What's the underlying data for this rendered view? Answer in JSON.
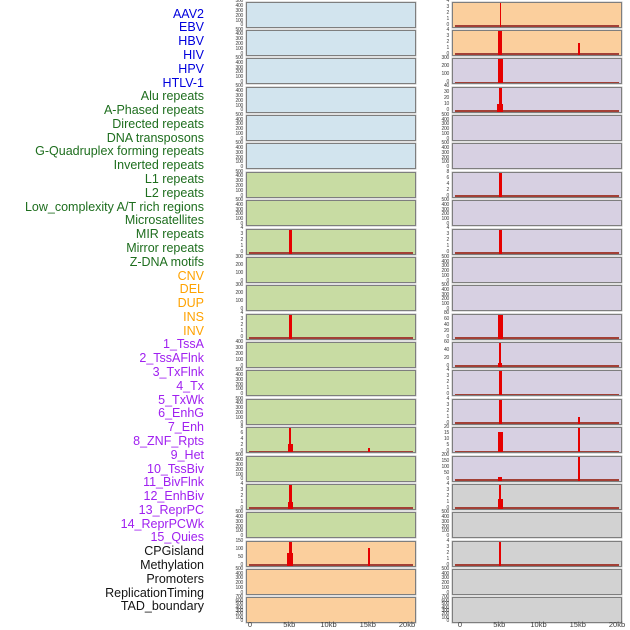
{
  "style": {
    "background": "#ffffff",
    "spike_color": "#e60000",
    "baseline_color": "#a24036",
    "panel_border": "#7e7e7e",
    "axis_text_color": "#3c3c3c",
    "label_colors": {
      "virus": "#0000dd",
      "repeat": "#1e6e1e",
      "variant": "#ffa200",
      "chromatin": "#a020f0",
      "genomic": "#141414"
    },
    "bg_colors": {
      "virus": "#d2e4ee",
      "repeat": "#c8dca3",
      "variant": "#fbcf9d",
      "chromatin": "#d7d0e2",
      "genomic": "#d2d2d2"
    }
  },
  "chart_data": {
    "type": "histogram-small-multiples",
    "description": "Feature density tracks over a 0-20kb window; red spikes mark feature enrichment (mostly at 5kb, some at 15kb).",
    "x_ticks": [
      "0",
      "5kb",
      "10kb",
      "15kb",
      "20kb"
    ],
    "x_range_kb": [
      0,
      20
    ],
    "grid": {
      "rows": 22,
      "cols": 2,
      "order": "column-major"
    },
    "legend_position": "none",
    "panels": [
      {
        "label": "AAV2",
        "group": "virus",
        "y_ticks": [
          "500",
          "400",
          "300",
          "200",
          "100",
          "0"
        ],
        "spikes": [],
        "baseline": false
      },
      {
        "label": "EBV",
        "group": "virus",
        "y_ticks": [
          "500",
          "400",
          "300",
          "200",
          "100",
          "0"
        ],
        "spikes": [],
        "baseline": false
      },
      {
        "label": "HBV",
        "group": "virus",
        "y_ticks": [
          "500",
          "400",
          "300",
          "200",
          "100",
          "0"
        ],
        "spikes": [],
        "baseline": false
      },
      {
        "label": "HIV",
        "group": "virus",
        "y_ticks": [
          "500",
          "400",
          "300",
          "200",
          "100",
          "0"
        ],
        "spikes": [],
        "baseline": false
      },
      {
        "label": "HPV",
        "group": "virus",
        "y_ticks": [
          "500",
          "400",
          "300",
          "200",
          "100",
          "0"
        ],
        "spikes": [],
        "baseline": false
      },
      {
        "label": "HTLV-1",
        "group": "virus",
        "y_ticks": [
          "500",
          "400",
          "300",
          "200",
          "100",
          "0"
        ],
        "spikes": [],
        "baseline": false
      },
      {
        "label": "Alu repeats",
        "group": "repeat",
        "y_ticks": [
          "500",
          "400",
          "300",
          "200",
          "100",
          "0"
        ],
        "spikes": [],
        "baseline": false
      },
      {
        "label": "A-Phased repeats",
        "group": "repeat",
        "y_ticks": [
          "500",
          "400",
          "300",
          "200",
          "100",
          "0"
        ],
        "spikes": [],
        "baseline": false
      },
      {
        "label": "Directed repeats",
        "group": "repeat",
        "y_ticks": [
          "4",
          "3",
          "2",
          "1",
          "0"
        ],
        "spikes": [
          {
            "x_kb": 5,
            "value": 4,
            "h": 1,
            "w": 2.5
          }
        ],
        "baseline": true
      },
      {
        "label": "DNA transposons",
        "group": "repeat",
        "y_ticks": [
          "300",
          "200",
          "100",
          "0"
        ],
        "spikes": [],
        "baseline": false
      },
      {
        "label": "G-Quadruplex forming repeats",
        "group": "repeat",
        "y_ticks": [
          "300",
          "200",
          "100",
          "0"
        ],
        "spikes": [],
        "baseline": false
      },
      {
        "label": "Inverted repeats",
        "group": "repeat",
        "y_ticks": [
          "4",
          "3",
          "2",
          "1",
          "0"
        ],
        "spikes": [
          {
            "x_kb": 5,
            "value": 4,
            "h": 1,
            "w": 2.5
          }
        ],
        "baseline": true
      },
      {
        "label": "L1 repeats",
        "group": "repeat",
        "y_ticks": [
          "400",
          "300",
          "200",
          "100",
          "0"
        ],
        "spikes": [],
        "baseline": false
      },
      {
        "label": "L2 repeats",
        "group": "repeat",
        "y_ticks": [
          "500",
          "400",
          "300",
          "200",
          "100",
          "0"
        ],
        "spikes": [],
        "baseline": false
      },
      {
        "label": "Low_complexity A/T rich regions",
        "group": "repeat",
        "y_ticks": [
          "500",
          "400",
          "300",
          "200",
          "100",
          "0"
        ],
        "spikes": [],
        "baseline": false
      },
      {
        "label": "Microsatellites",
        "group": "repeat",
        "y_ticks": [
          "8",
          "6",
          "4",
          "2",
          "0"
        ],
        "spikes": [
          {
            "x_kb": 5,
            "value": 8,
            "h": 1,
            "w": 2
          },
          {
            "x_kb": 5,
            "value": 2.8,
            "h": 0.35,
            "w": 5
          },
          {
            "x_kb": 15,
            "value": 1.5,
            "h": 0.18,
            "w": 2
          }
        ],
        "baseline": true
      },
      {
        "label": "MIR repeats",
        "group": "repeat",
        "y_ticks": [
          "500",
          "400",
          "300",
          "200",
          "100",
          "0"
        ],
        "spikes": [],
        "baseline": false
      },
      {
        "label": "Mirror repeats",
        "group": "repeat",
        "y_ticks": [
          "4",
          "3",
          "2",
          "1",
          "0"
        ],
        "spikes": [
          {
            "x_kb": 5,
            "value": 4,
            "h": 1,
            "w": 2.5
          },
          {
            "x_kb": 5,
            "value": 1.2,
            "h": 0.3,
            "w": 4.5
          }
        ],
        "baseline": true
      },
      {
        "label": "Z-DNA motifs",
        "group": "repeat",
        "y_ticks": [
          "500",
          "400",
          "300",
          "200",
          "100",
          "0"
        ],
        "spikes": [],
        "baseline": false
      },
      {
        "label": "CNV",
        "group": "variant",
        "y_ticks": [
          "150",
          "100",
          "50",
          "0"
        ],
        "spikes": [
          {
            "x_kb": 5,
            "value": 150,
            "h": 1,
            "w": 2.5
          },
          {
            "x_kb": 5,
            "value": 80,
            "h": 0.53,
            "w": 6
          },
          {
            "x_kb": 15,
            "value": 108,
            "h": 0.72,
            "w": 2.5
          }
        ],
        "baseline": true
      },
      {
        "label": "DEL",
        "group": "variant",
        "y_ticks": [
          "500",
          "400",
          "300",
          "200",
          "100",
          "0"
        ],
        "spikes": [],
        "baseline": false
      },
      {
        "label": "DUP",
        "group": "variant",
        "y_ticks": [
          "700",
          "600",
          "500",
          "400",
          "300",
          "200",
          "100",
          "0"
        ],
        "spikes": [],
        "baseline": false
      },
      {
        "label": "INS",
        "group": "variant",
        "y_ticks": [
          "4",
          "3",
          "2",
          "1",
          "0"
        ],
        "spikes": [
          {
            "x_kb": 5,
            "value": 4,
            "h": 1,
            "w": 1.5
          }
        ],
        "baseline": true
      },
      {
        "label": "INV",
        "group": "variant",
        "y_ticks": [
          "4",
          "3",
          "2",
          "1",
          "0"
        ],
        "spikes": [
          {
            "x_kb": 5,
            "value": 4,
            "h": 1,
            "w": 4
          },
          {
            "x_kb": 15,
            "value": 2,
            "h": 0.5,
            "w": 1.5
          }
        ],
        "baseline": true
      },
      {
        "label": "1_TssA",
        "group": "chromatin",
        "y_ticks": [
          "300",
          "200",
          "100",
          "0"
        ],
        "spikes": [
          {
            "x_kb": 5,
            "value": 300,
            "h": 1,
            "w": 5
          }
        ],
        "baseline": true
      },
      {
        "label": "2_TssAFlnk",
        "group": "chromatin",
        "y_ticks": [
          "40",
          "30",
          "20",
          "10",
          "0"
        ],
        "spikes": [
          {
            "x_kb": 5,
            "value": 40,
            "h": 1,
            "w": 2.5
          },
          {
            "x_kb": 5,
            "value": 12,
            "h": 0.3,
            "w": 6
          }
        ],
        "baseline": true
      },
      {
        "label": "3_TxFlnk",
        "group": "chromatin",
        "y_ticks": [
          "500",
          "400",
          "300",
          "200",
          "100",
          "0"
        ],
        "spikes": [],
        "baseline": false
      },
      {
        "label": "4_Tx",
        "group": "chromatin",
        "y_ticks": [
          "500",
          "400",
          "300",
          "200",
          "100",
          "0"
        ],
        "spikes": [],
        "baseline": false
      },
      {
        "label": "5_TxWk",
        "group": "chromatin",
        "y_ticks": [
          "8",
          "6",
          "4",
          "2",
          "0"
        ],
        "spikes": [
          {
            "x_kb": 5,
            "value": 8,
            "h": 1,
            "w": 3.5
          }
        ],
        "baseline": true
      },
      {
        "label": "6_EnhG",
        "group": "chromatin",
        "y_ticks": [
          "500",
          "400",
          "300",
          "200",
          "100",
          "0"
        ],
        "spikes": [],
        "baseline": false
      },
      {
        "label": "7_Enh",
        "group": "chromatin",
        "y_ticks": [
          "4",
          "3",
          "2",
          "1",
          "0"
        ],
        "spikes": [
          {
            "x_kb": 5,
            "value": 4,
            "h": 1,
            "w": 3.5
          }
        ],
        "baseline": true
      },
      {
        "label": "8_ZNF_Rpts",
        "group": "chromatin",
        "y_ticks": [
          "500",
          "400",
          "300",
          "200",
          "100",
          "0"
        ],
        "spikes": [],
        "baseline": false
      },
      {
        "label": "9_Het",
        "group": "chromatin",
        "y_ticks": [
          "500",
          "400",
          "300",
          "200",
          "100",
          "0"
        ],
        "spikes": [],
        "baseline": false
      },
      {
        "label": "10_TssBiv",
        "group": "chromatin",
        "y_ticks": [
          "80",
          "60",
          "40",
          "20",
          "0"
        ],
        "spikes": [
          {
            "x_kb": 5,
            "value": 80,
            "h": 1,
            "w": 5
          }
        ],
        "baseline": true
      },
      {
        "label": "11_BivFlnk",
        "group": "chromatin",
        "y_ticks": [
          "60",
          "40",
          "20",
          "0"
        ],
        "spikes": [
          {
            "x_kb": 5,
            "value": 60,
            "h": 1,
            "w": 2
          },
          {
            "x_kb": 5,
            "value": 9,
            "h": 0.15,
            "w": 4
          }
        ],
        "baseline": true
      },
      {
        "label": "12_EnhBiv",
        "group": "chromatin",
        "y_ticks": [
          "4",
          "3",
          "2",
          "1",
          "0"
        ],
        "spikes": [
          {
            "x_kb": 5,
            "value": 4,
            "h": 1,
            "w": 3.5
          }
        ],
        "baseline": true
      },
      {
        "label": "13_ReprPC",
        "group": "chromatin",
        "y_ticks": [
          "4",
          "3",
          "2",
          "1",
          "0"
        ],
        "spikes": [
          {
            "x_kb": 5,
            "value": 4,
            "h": 1,
            "w": 3.5
          },
          {
            "x_kb": 15,
            "value": 1.2,
            "h": 0.3,
            "w": 1.5
          }
        ],
        "baseline": true
      },
      {
        "label": "14_ReprPCWk",
        "group": "chromatin",
        "y_ticks": [
          "20",
          "15",
          "10",
          "5",
          "0"
        ],
        "spikes": [
          {
            "x_kb": 5,
            "value": 17,
            "h": 0.85,
            "w": 5
          },
          {
            "x_kb": 15,
            "value": 20,
            "h": 1,
            "w": 2
          }
        ],
        "baseline": true
      },
      {
        "label": "15_Quies",
        "group": "chromatin",
        "y_ticks": [
          "200",
          "150",
          "100",
          "50",
          "0"
        ],
        "spikes": [
          {
            "x_kb": 5,
            "value": 30,
            "h": 0.15,
            "w": 4
          },
          {
            "x_kb": 15,
            "value": 200,
            "h": 1,
            "w": 2
          }
        ],
        "baseline": true
      },
      {
        "label": "CPGisland",
        "group": "genomic",
        "y_ticks": [
          "4",
          "3",
          "2",
          "1",
          "0"
        ],
        "spikes": [
          {
            "x_kb": 5,
            "value": 4,
            "h": 1,
            "w": 2
          },
          {
            "x_kb": 5,
            "value": 1.6,
            "h": 0.4,
            "w": 5
          }
        ],
        "baseline": true
      },
      {
        "label": "Methylation",
        "group": "genomic",
        "y_ticks": [
          "500",
          "400",
          "300",
          "200",
          "100",
          "0"
        ],
        "spikes": [],
        "baseline": false
      },
      {
        "label": "Promoters",
        "group": "genomic",
        "y_ticks": [
          "4",
          "3",
          "2",
          "1",
          "0"
        ],
        "spikes": [
          {
            "x_kb": 5,
            "value": 4,
            "h": 1,
            "w": 2
          }
        ],
        "baseline": true
      },
      {
        "label": "ReplicationTiming",
        "group": "genomic",
        "y_ticks": [
          "500",
          "400",
          "300",
          "200",
          "100",
          "0"
        ],
        "spikes": [],
        "baseline": false
      },
      {
        "label": "TAD_boundary",
        "group": "genomic",
        "y_ticks": [
          "700",
          "600",
          "500",
          "400",
          "300",
          "200",
          "100",
          "0"
        ],
        "spikes": [],
        "baseline": false
      }
    ]
  }
}
